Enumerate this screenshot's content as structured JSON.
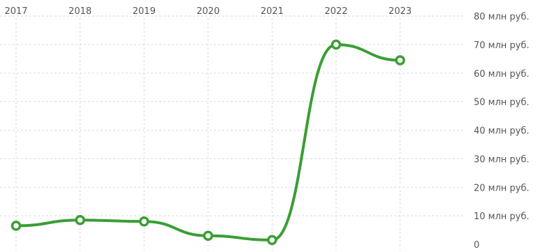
{
  "chart_data": {
    "type": "line",
    "x": [
      "2017",
      "2018",
      "2019",
      "2020",
      "2021",
      "2022",
      "2023"
    ],
    "series": [
      {
        "values": [
          6.5,
          8.5,
          8,
          3,
          1.5,
          70,
          64.5
        ]
      }
    ],
    "y_tick_labels": [
      "0",
      "10 млн руб.",
      "20 млн руб.",
      "30 млн руб.",
      "40 млн руб.",
      "50 млн руб.",
      "60 млн руб.",
      "70 млн руб.",
      "80 млн руб."
    ],
    "ylim": [
      0,
      80
    ],
    "x_axis_position": "top",
    "y_axis_position": "right",
    "grid": true,
    "colors": {
      "line": "#3a9e35",
      "marker_fill": "#ffffff",
      "grid": "#d9d9d9",
      "text": "#555555"
    }
  }
}
